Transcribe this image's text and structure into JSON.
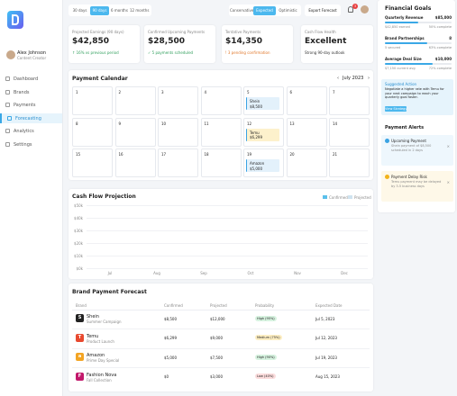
{
  "sidebar": {
    "user_name": "Alex Johnson",
    "user_role": "Content Creator",
    "nav": [
      "Dashboard",
      "Brands",
      "Payments",
      "Forecasting",
      "Analytics",
      "Settings"
    ],
    "active_nav": 3
  },
  "toolbar": {
    "periods": [
      "30 days",
      "90 days",
      "6 months",
      "12 months"
    ],
    "active_period": 1,
    "scenarios": [
      "Conservative",
      "Expected",
      "Optimistic"
    ],
    "active_scenario": 1,
    "export": "Export Forecast",
    "notifications": "3"
  },
  "summary_cards": [
    {
      "label": "Projected Earnings (90 days)",
      "value": "$42,850",
      "note": "↑ 16% vs previous period",
      "note_color": "#2e9e5b"
    },
    {
      "label": "Confirmed Upcoming Payments",
      "value": "$28,500",
      "note": "✓ 5 payments scheduled",
      "note_color": "#2e9e5b"
    },
    {
      "label": "Tentative Payments",
      "value": "$14,350",
      "note": "! 3 pending confirmation",
      "note_color": "#e0772a"
    },
    {
      "label": "Cash Flow Health",
      "value": "Excellent",
      "note": "Strong 90-day outlook",
      "note_color": "#333333"
    }
  ],
  "calendar": {
    "title": "Payment Calendar",
    "month": "July 2023",
    "cells": [
      {
        "day": "1"
      },
      {
        "day": "2"
      },
      {
        "day": "3"
      },
      {
        "day": "4"
      },
      {
        "day": "5",
        "brand": "Shein",
        "amount": "$8,500",
        "color": "#e3f1fb"
      },
      {
        "day": "6"
      },
      {
        "day": "7"
      },
      {
        "day": "8"
      },
      {
        "day": "9"
      },
      {
        "day": "10"
      },
      {
        "day": "11"
      },
      {
        "day": "12",
        "brand": "Temu",
        "amount": "$6,299",
        "color": "#fdf1cc"
      },
      {
        "day": "13"
      },
      {
        "day": "14"
      },
      {
        "day": "15"
      },
      {
        "day": "16"
      },
      {
        "day": "17"
      },
      {
        "day": "18"
      },
      {
        "day": "19",
        "brand": "Amazon",
        "amount": "$5,000",
        "color": "#e3f1fb"
      },
      {
        "day": "20"
      },
      {
        "day": "21"
      }
    ]
  },
  "cash_flow": {
    "title": "Cash Flow Projection",
    "legend": [
      {
        "name": "Confirmed",
        "color": "#5bc0eb"
      },
      {
        "name": "Projected",
        "color": "#cfe3f0"
      }
    ],
    "y_labels": [
      "$50k",
      "$40k",
      "$30k",
      "$20k",
      "$10k",
      "$0k"
    ],
    "x_labels": [
      "Jul",
      "Aug",
      "Sep",
      "Oct",
      "Nov",
      "Dec"
    ]
  },
  "forecast_table": {
    "title": "Brand Payment Forecast",
    "columns": [
      "Brand",
      "Confirmed",
      "Projected",
      "Probability",
      "Expected Date"
    ],
    "rows": [
      {
        "logo_text": "S",
        "logo_color": "#222222",
        "brand": "Shein",
        "campaign": "Summer Campaign",
        "confirmed": "$8,500",
        "projected": "$12,000",
        "probability": "High (95%)",
        "probability_color": "#d7f3e0",
        "expected_date": "Jul 5, 2023"
      },
      {
        "logo_text": "T",
        "logo_color": "#e8492f",
        "brand": "Temu",
        "campaign": "Product Launch",
        "confirmed": "$6,299",
        "projected": "$9,000",
        "probability": "Medium (75%)",
        "probability_color": "#fdeec2",
        "expected_date": "Jul 12, 2023"
      },
      {
        "logo_text": "a",
        "logo_color": "#f3a423",
        "brand": "Amazon",
        "campaign": "Prime Day Special",
        "confirmed": "$5,000",
        "projected": "$7,500",
        "probability": "High (90%)",
        "probability_color": "#d7f3e0",
        "expected_date": "Jul 19, 2023"
      },
      {
        "logo_text": "F",
        "logo_color": "#c2186b",
        "brand": "Fashion Nova",
        "campaign": "Fall Collection",
        "confirmed": "$0",
        "projected": "$3,000",
        "probability": "Low (40%)",
        "probability_color": "#fbdcdc",
        "expected_date": "Aug 15, 2023"
      }
    ]
  },
  "goals": {
    "title": "Financial Goals",
    "items": [
      {
        "name": "Quarterly Revenue",
        "target": "$85,000",
        "current": "$42,850 earned",
        "percent": 50,
        "percent_label": "50% complete"
      },
      {
        "name": "Brand Partnerships",
        "target": "8",
        "current": "5 secured",
        "percent": 63,
        "percent_label": "63% complete"
      },
      {
        "name": "Average Deal Size",
        "target": "$10,000",
        "current": "$7,150 current avg",
        "percent": 72,
        "percent_label": "72% complete"
      }
    ]
  },
  "suggestion": {
    "title": "Suggested Action",
    "text": "Negotiate a higher rate with Temu for your next campaign to reach your quarterly goal faster.",
    "button": "View Strategy"
  },
  "alerts": {
    "title": "Payment Alerts",
    "items": [
      {
        "title": "Upcoming Payment",
        "text": "Shein payment of $8,500 scheduled in 2 days",
        "color": "#3aa3e3",
        "bg": "#eef7fd"
      },
      {
        "title": "Payment Delay Risk",
        "text": "Temu payment may be delayed by 3-5 business days",
        "color": "#f2b31b",
        "bg": "#fef8e8"
      }
    ]
  }
}
